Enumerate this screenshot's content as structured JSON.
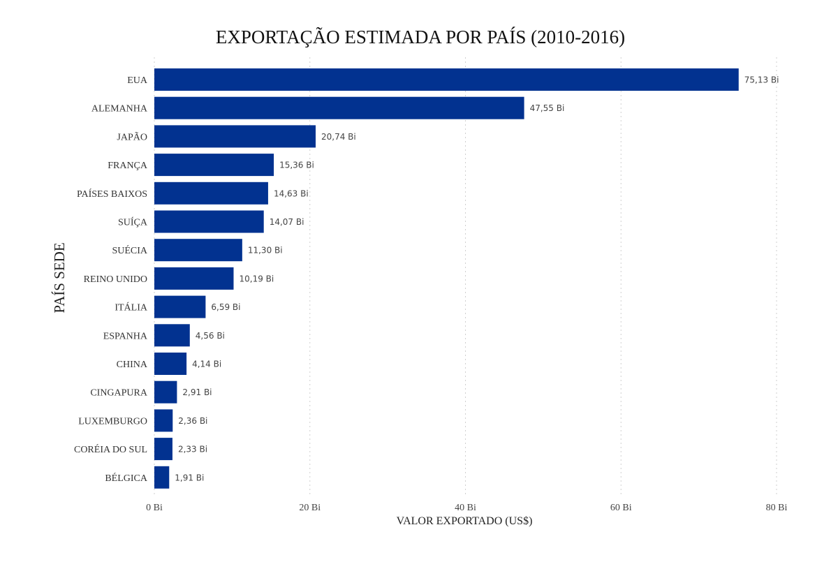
{
  "chart_data": {
    "type": "bar",
    "orientation": "horizontal",
    "title": "EXPORTAÇÃO ESTIMADA POR PAÍS (2010-2016)",
    "xlabel": "VALOR EXPORTADO (US$)",
    "ylabel": "PAÍS SEDE",
    "xlim": [
      0,
      80
    ],
    "xticks": [
      0,
      20,
      40,
      60,
      80
    ],
    "xtick_labels": [
      "0 Bi",
      "20 Bi",
      "40 Bi",
      "60 Bi",
      "80 Bi"
    ],
    "grid": "vertical dotted",
    "bar_color": "#023290",
    "categories": [
      "EUA",
      "ALEMANHA",
      "JAPÃO",
      "FRANÇA",
      "PAÍSES BAIXOS",
      "SUÍÇA",
      "SUÉCIA",
      "REINO UNIDO",
      "ITÁLIA",
      "ESPANHA",
      "CHINA",
      "CINGAPURA",
      "LUXEMBURGO",
      "CORÉIA DO SUL",
      "BÉLGICA"
    ],
    "values": [
      75.13,
      47.55,
      20.74,
      15.36,
      14.63,
      14.07,
      11.3,
      10.19,
      6.59,
      4.56,
      4.14,
      2.91,
      2.36,
      2.33,
      1.91
    ],
    "data_labels": [
      "75,13 Bi",
      "47,55 Bi",
      "20,74 Bi",
      "15,36 Bi",
      "14,63 Bi",
      "14,07 Bi",
      "11,30 Bi",
      "10,19 Bi",
      "6,59 Bi",
      "4,56 Bi",
      "4,14 Bi",
      "2,91 Bi",
      "2,36 Bi",
      "2,33 Bi",
      "1,91 Bi"
    ]
  }
}
